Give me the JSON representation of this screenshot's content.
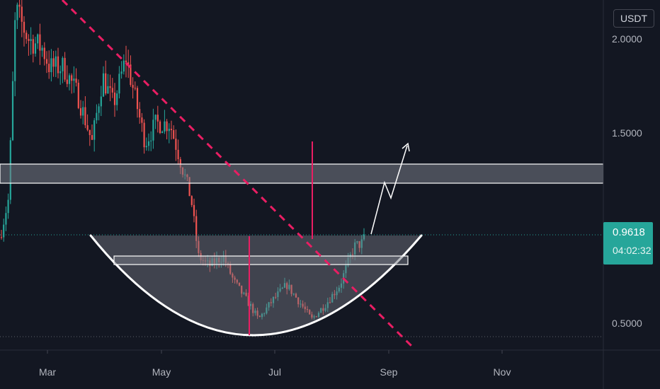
{
  "currency": "USDT",
  "current_price": "0.9618",
  "countdown": "04:02:32",
  "colors": {
    "background": "#131722",
    "up": "#26a69a",
    "down": "#ef5350",
    "trendline": "#e91e63",
    "zone_fill": "#787b86",
    "zone_stroke": "#ffffff",
    "axis_text": "#b2b5be"
  },
  "chart_data": {
    "type": "candlestick",
    "x_ticks": [
      "Mar",
      "May",
      "Jul",
      "Sep",
      "Nov"
    ],
    "y_ticks": [
      {
        "value": 2.0,
        "label": "2.0000"
      },
      {
        "value": 1.5,
        "label": "1.5000"
      },
      {
        "value": 0.5,
        "label": "0.5000"
      }
    ],
    "ylim": [
      0.43,
      2.2
    ],
    "current_price": 0.9618,
    "support_low": 0.455,
    "resistance_zone": [
      1.25,
      1.35
    ],
    "mid_zone": [
      0.83,
      0.87
    ],
    "annotations": [
      "descending trendline",
      "rounded bottom (cup)",
      "projected breakout arrow"
    ]
  }
}
